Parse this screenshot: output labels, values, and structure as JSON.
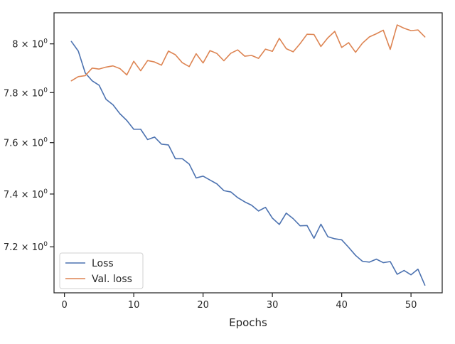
{
  "chart_data": {
    "type": "line",
    "title": "",
    "xlabel": "Epochs",
    "ylabel": "",
    "yscale": "log",
    "xlim": [
      -1.5,
      54.5
    ],
    "ylim": [
      7.03,
      8.13
    ],
    "x_ticks": [
      {
        "value": 0,
        "label": "0"
      },
      {
        "value": 10,
        "label": "10"
      },
      {
        "value": 20,
        "label": "20"
      },
      {
        "value": 30,
        "label": "30"
      },
      {
        "value": 40,
        "label": "40"
      },
      {
        "value": 50,
        "label": "50"
      }
    ],
    "y_ticks": [
      {
        "value": 7.2,
        "mantissa": "7.2",
        "base": "10",
        "exp": "0"
      },
      {
        "value": 7.4,
        "mantissa": "7.4",
        "base": "10",
        "exp": "0"
      },
      {
        "value": 7.6,
        "mantissa": "7.6",
        "base": "10",
        "exp": "0"
      },
      {
        "value": 7.8,
        "mantissa": "7.8",
        "base": "10",
        "exp": "0"
      },
      {
        "value": 8.0,
        "mantissa": "8",
        "base": "10",
        "exp": "0"
      }
    ],
    "grid": false,
    "legend_position": "lower-left",
    "x": [
      1,
      2,
      3,
      4,
      5,
      6,
      7,
      8,
      9,
      10,
      11,
      12,
      13,
      14,
      15,
      16,
      17,
      18,
      19,
      20,
      21,
      22,
      23,
      24,
      25,
      26,
      27,
      28,
      29,
      30,
      31,
      32,
      33,
      34,
      35,
      36,
      37,
      38,
      39,
      40,
      41,
      42,
      43,
      44,
      45,
      46,
      47,
      48,
      49,
      50,
      51,
      52
    ],
    "series": [
      {
        "name": "Loss",
        "color": "#4c72b0",
        "values": [
          8.01,
          7.97,
          7.88,
          7.848,
          7.83,
          7.773,
          7.751,
          7.715,
          7.688,
          7.653,
          7.653,
          7.612,
          7.622,
          7.594,
          7.591,
          7.537,
          7.537,
          7.516,
          7.462,
          7.469,
          7.454,
          7.439,
          7.413,
          7.408,
          7.386,
          7.37,
          7.357,
          7.335,
          7.349,
          7.308,
          7.284,
          7.327,
          7.306,
          7.279,
          7.28,
          7.232,
          7.285,
          7.238,
          7.23,
          7.226,
          7.198,
          7.168,
          7.146,
          7.143,
          7.154,
          7.141,
          7.145,
          7.098,
          7.112,
          7.096,
          7.117,
          7.058
        ]
      },
      {
        "name": "Val. loss",
        "color": "#dd8452",
        "values": [
          7.848,
          7.865,
          7.869,
          7.9,
          7.896,
          7.904,
          7.909,
          7.898,
          7.872,
          7.928,
          7.889,
          7.931,
          7.925,
          7.912,
          7.97,
          7.955,
          7.922,
          7.906,
          7.959,
          7.921,
          7.972,
          7.96,
          7.93,
          7.961,
          7.975,
          7.949,
          7.952,
          7.94,
          7.978,
          7.969,
          8.023,
          7.98,
          7.967,
          8.001,
          8.04,
          8.039,
          7.989,
          8.025,
          8.052,
          7.985,
          8.005,
          7.965,
          8.003,
          8.029,
          8.042,
          8.057,
          7.977,
          8.079,
          8.065,
          8.055,
          8.058,
          8.029
        ]
      }
    ]
  }
}
